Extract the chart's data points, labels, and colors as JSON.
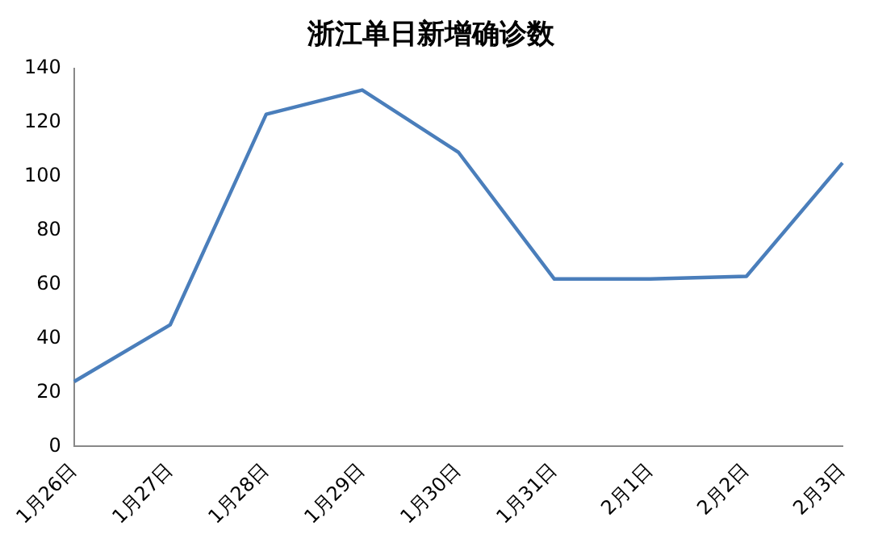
{
  "chart_data": {
    "type": "line",
    "title": "浙江单日新增确诊数",
    "categories": [
      "1月26日",
      "1月27日",
      "1月28日",
      "1月29日",
      "1月30日",
      "1月31日",
      "2月1日",
      "2月2日",
      "2月3日"
    ],
    "series": [
      {
        "color": "#4a7ebb",
        "values": [
          24,
          45,
          123,
          132,
          109,
          62,
          62,
          63,
          105
        ]
      }
    ],
    "ylim": [
      0,
      140
    ],
    "yticks": [
      0,
      20,
      40,
      60,
      80,
      100,
      120,
      140
    ],
    "grid": false,
    "legend": false,
    "marker": "none",
    "line_style": "solid"
  }
}
